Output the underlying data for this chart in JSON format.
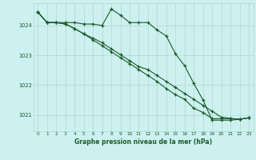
{
  "title": "Graphe pression niveau de la mer (hPa)",
  "bg_color": "#cdf0f0",
  "grid_color": "#b0d8cc",
  "line_color": "#1a5c2a",
  "xlim": [
    -0.5,
    23.5
  ],
  "ylim": [
    1020.45,
    1024.75
  ],
  "yticks": [
    1021,
    1022,
    1023,
    1024
  ],
  "xticks": [
    0,
    1,
    2,
    3,
    4,
    5,
    6,
    7,
    8,
    9,
    10,
    11,
    12,
    13,
    14,
    15,
    16,
    17,
    18,
    19,
    20,
    21,
    22,
    23
  ],
  "series1": [
    1024.45,
    1024.1,
    1024.1,
    1024.1,
    1024.1,
    1024.05,
    1024.05,
    1024.0,
    1024.55,
    1024.35,
    1024.1,
    1024.1,
    1024.1,
    1023.85,
    1023.65,
    1023.05,
    1022.65,
    1022.05,
    1021.5,
    1020.82,
    1020.82,
    1020.82,
    1020.85,
    1020.9
  ],
  "series2": [
    1024.45,
    1024.1,
    1024.1,
    1024.05,
    1023.9,
    1023.72,
    1023.58,
    1023.42,
    1023.22,
    1023.02,
    1022.82,
    1022.62,
    1022.52,
    1022.32,
    1022.12,
    1021.92,
    1021.72,
    1021.52,
    1021.32,
    1021.12,
    1020.92,
    1020.88,
    1020.85,
    1020.9
  ],
  "series3": [
    1024.45,
    1024.1,
    1024.1,
    1024.05,
    1023.9,
    1023.72,
    1023.52,
    1023.32,
    1023.12,
    1022.92,
    1022.72,
    1022.52,
    1022.32,
    1022.12,
    1021.88,
    1021.68,
    1021.52,
    1021.22,
    1021.08,
    1020.87,
    1020.87,
    1020.87,
    1020.85,
    1020.9
  ]
}
